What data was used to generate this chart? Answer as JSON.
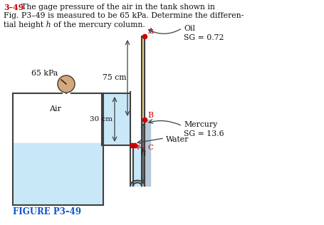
{
  "title_number": "3–49",
  "title_line1": "The gage pressure of the air in the tank shown in",
  "title_line2": "Fig. P3–49 is measured to be 65 kPa. Determine the differen-",
  "title_line3": "tial height ℎ of the mercury column.",
  "figure_label": "FIGURE P3–49",
  "label_65kpa": "65 kPa",
  "label_air": "Air",
  "label_water": "Water",
  "label_oil": "Oil",
  "label_oil_sg": "SG = 0.72",
  "label_mercury": "Mercury",
  "label_mercury_sg": "SG = 13.6",
  "label_75cm": "75 cm",
  "label_30cm": "30 cm",
  "label_h": "ℎ",
  "label_A": "A",
  "label_B": "B",
  "label_C": "C",
  "bg_color": "#ffffff",
  "tank_fill_color": "#c8e8f8",
  "oil_color": "#f0d878",
  "mercury_color": "#b8c8d8",
  "water_color": "#c8e8f8",
  "gauge_color": "#d4a87a",
  "title_number_color": "#cc0000",
  "figure_label_color": "#1155cc",
  "dot_color": "#cc0000",
  "line_color": "#404040",
  "text_color": "#111111",
  "arrow_color": "#404040"
}
